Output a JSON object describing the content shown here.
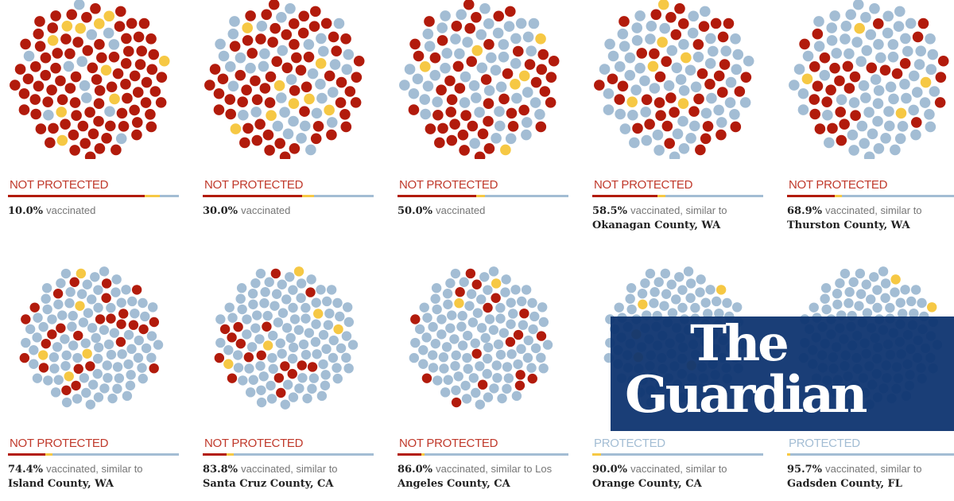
{
  "colors": {
    "unprotected": "#b21b0c",
    "vaccinated": "#a3bdd4",
    "infected_vaccinated": "#f6c844",
    "text_red": "#c0392b",
    "text_blue": "#a3bdd4"
  },
  "chart_data": {
    "type": "dot-matrix",
    "panels": [
      {
        "status": "NOT PROTECTED",
        "pct": "10.0%",
        "suffix": "vaccinated",
        "county": "",
        "bar": [
          0.8,
          0.09,
          0.11
        ]
      },
      {
        "status": "NOT PROTECTED",
        "pct": "30.0%",
        "suffix": "vaccinated",
        "county": "",
        "bar": [
          0.58,
          0.07,
          0.35
        ]
      },
      {
        "status": "NOT PROTECTED",
        "pct": "50.0%",
        "suffix": "vaccinated",
        "county": "",
        "bar": [
          0.46,
          0.05,
          0.49
        ]
      },
      {
        "status": "NOT PROTECTED",
        "pct": "58.5%",
        "suffix": "vaccinated, similar to",
        "county": "Okanagan County, WA",
        "bar": [
          0.38,
          0.05,
          0.57
        ]
      },
      {
        "status": "NOT PROTECTED",
        "pct": "68.9%",
        "suffix": "vaccinated, similar to",
        "county": "Thurston County, WA",
        "bar": [
          0.28,
          0.04,
          0.68
        ]
      },
      {
        "status": "NOT PROTECTED",
        "pct": "74.4%",
        "suffix": "vaccinated, similar to",
        "county": "Island County, WA",
        "bar": [
          0.22,
          0.04,
          0.74
        ]
      },
      {
        "status": "NOT PROTECTED",
        "pct": "83.8%",
        "suffix": "vaccinated, similar to",
        "county": "Santa Cruz County, CA",
        "bar": [
          0.14,
          0.04,
          0.82
        ]
      },
      {
        "status": "NOT PROTECTED",
        "pct": "86.0%",
        "suffix": "vaccinated, similar to Los",
        "county": "Angeles County, CA",
        "bar": [
          0.14,
          0.02,
          0.84
        ]
      },
      {
        "status": "PROTECTED",
        "pct": "90.0%",
        "suffix": "vaccinated, similar to",
        "county": "Orange County, CA",
        "bar": [
          0.0,
          0.05,
          0.95
        ]
      },
      {
        "status": "PROTECTED",
        "pct": "95.7%",
        "suffix": "vaccinated, similar to",
        "county": "Gadsden County, FL",
        "bar": [
          0.0,
          0.02,
          0.98
        ]
      }
    ]
  },
  "logo": {
    "line1": "The",
    "line2": "Guardian"
  }
}
